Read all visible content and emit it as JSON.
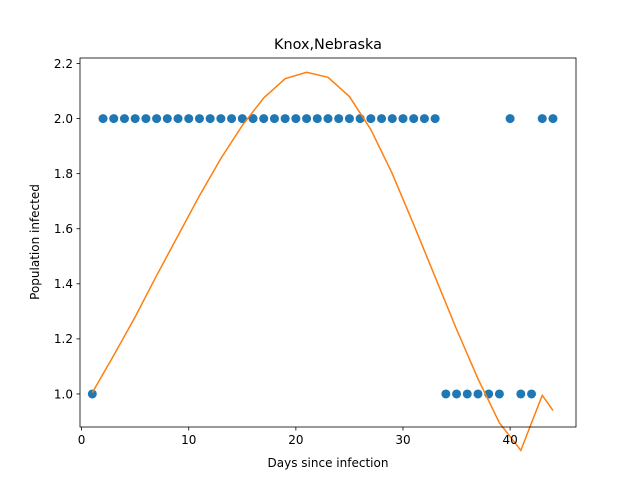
{
  "chart_data": {
    "type": "scatter",
    "title": "Knox,Nebraska",
    "xlabel": "Days since infection",
    "ylabel": "Population infected",
    "xlim": [
      -0.15,
      46.15
    ],
    "ylim": [
      0.88,
      2.22
    ],
    "xticks": [
      0,
      10,
      20,
      30,
      40
    ],
    "yticks": [
      1.0,
      1.2,
      1.4,
      1.6,
      1.8,
      2.0,
      2.2
    ],
    "ytick_labels": [
      "1.0",
      "1.2",
      "1.4",
      "1.6",
      "1.8",
      "2.0",
      "2.2"
    ],
    "grid": false,
    "series": [
      {
        "kind": "scatter",
        "color": "#1f77b4",
        "x": [
          1,
          2,
          3,
          4,
          5,
          6,
          7,
          8,
          9,
          10,
          11,
          12,
          13,
          14,
          15,
          16,
          17,
          18,
          19,
          20,
          21,
          22,
          23,
          24,
          25,
          26,
          27,
          28,
          29,
          30,
          31,
          32,
          33,
          34,
          35,
          36,
          37,
          38,
          39,
          40,
          41,
          42,
          43,
          44
        ],
        "y": [
          1,
          2,
          2,
          2,
          2,
          2,
          2,
          2,
          2,
          2,
          2,
          2,
          2,
          2,
          2,
          2,
          2,
          2,
          2,
          2,
          2,
          2,
          2,
          2,
          2,
          2,
          2,
          2,
          2,
          2,
          2,
          2,
          2,
          1,
          1,
          1,
          1,
          1,
          1,
          2,
          1,
          1,
          2,
          2
        ]
      },
      {
        "kind": "line",
        "color": "#ff7f0e",
        "x": [
          1,
          3,
          5,
          7,
          9,
          11,
          13,
          15,
          17,
          19,
          21,
          23,
          25,
          27,
          29,
          31,
          33,
          35,
          37,
          39,
          41,
          43,
          44
        ],
        "y": [
          1.005,
          1.14,
          1.28,
          1.43,
          1.575,
          1.72,
          1.855,
          1.975,
          2.075,
          2.145,
          2.168,
          2.15,
          2.08,
          1.96,
          1.8,
          1.615,
          1.425,
          1.235,
          1.055,
          0.895,
          0.795,
          0.995,
          0.94
        ]
      }
    ]
  }
}
